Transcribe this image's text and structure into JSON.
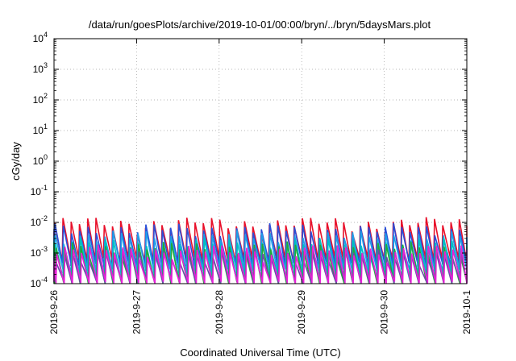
{
  "chart_data": {
    "type": "line",
    "title": "/data/run/goesPlots/archive/2019-10-01/00:00/bryn/../bryn/5daysMars.plot",
    "xlabel": "Coordinated Universal Time (UTC)",
    "ylabel": "cGy/day",
    "x_scale": "time",
    "y_scale": "log",
    "xlim": [
      "2019-09-26",
      "2019-10-01"
    ],
    "ylim": [
      0.0001,
      10000
    ],
    "x_ticks": [
      "2019-9-26",
      "2019-9-27",
      "2019-9-28",
      "2019-9-29",
      "2019-9-30",
      "2019-10-1"
    ],
    "y_ticks": [
      {
        "base": "10",
        "exp": "-4"
      },
      {
        "base": "10",
        "exp": "-3"
      },
      {
        "base": "10",
        "exp": "-2"
      },
      {
        "base": "10",
        "exp": "-1"
      },
      {
        "base": "10",
        "exp": "0"
      },
      {
        "base": "10",
        "exp": "1"
      },
      {
        "base": "10",
        "exp": "2"
      },
      {
        "base": "10",
        "exp": "3"
      },
      {
        "base": "10",
        "exp": "4"
      }
    ],
    "grid": true,
    "legend": "none",
    "cycles_per_day": 10,
    "series": [
      {
        "color": "#e8102a",
        "peak": 0.0095,
        "trough": 0.0006
      },
      {
        "color": "#2a4fd8",
        "peak": 0.006,
        "trough": 0.0004
      },
      {
        "color": "#1fa0e8",
        "peak": 0.0035,
        "trough": 0.00025
      },
      {
        "color": "#00c0c0",
        "peak": 0.002,
        "trough": 0.00015
      },
      {
        "color": "#22a83a",
        "peak": 0.0015,
        "trough": 0.0001
      },
      {
        "color": "#6a4aa8",
        "peak": 0.0009,
        "trough": 0.0001
      },
      {
        "color": "#e820d8",
        "peak": 0.0012,
        "trough": 0.0001
      }
    ]
  }
}
